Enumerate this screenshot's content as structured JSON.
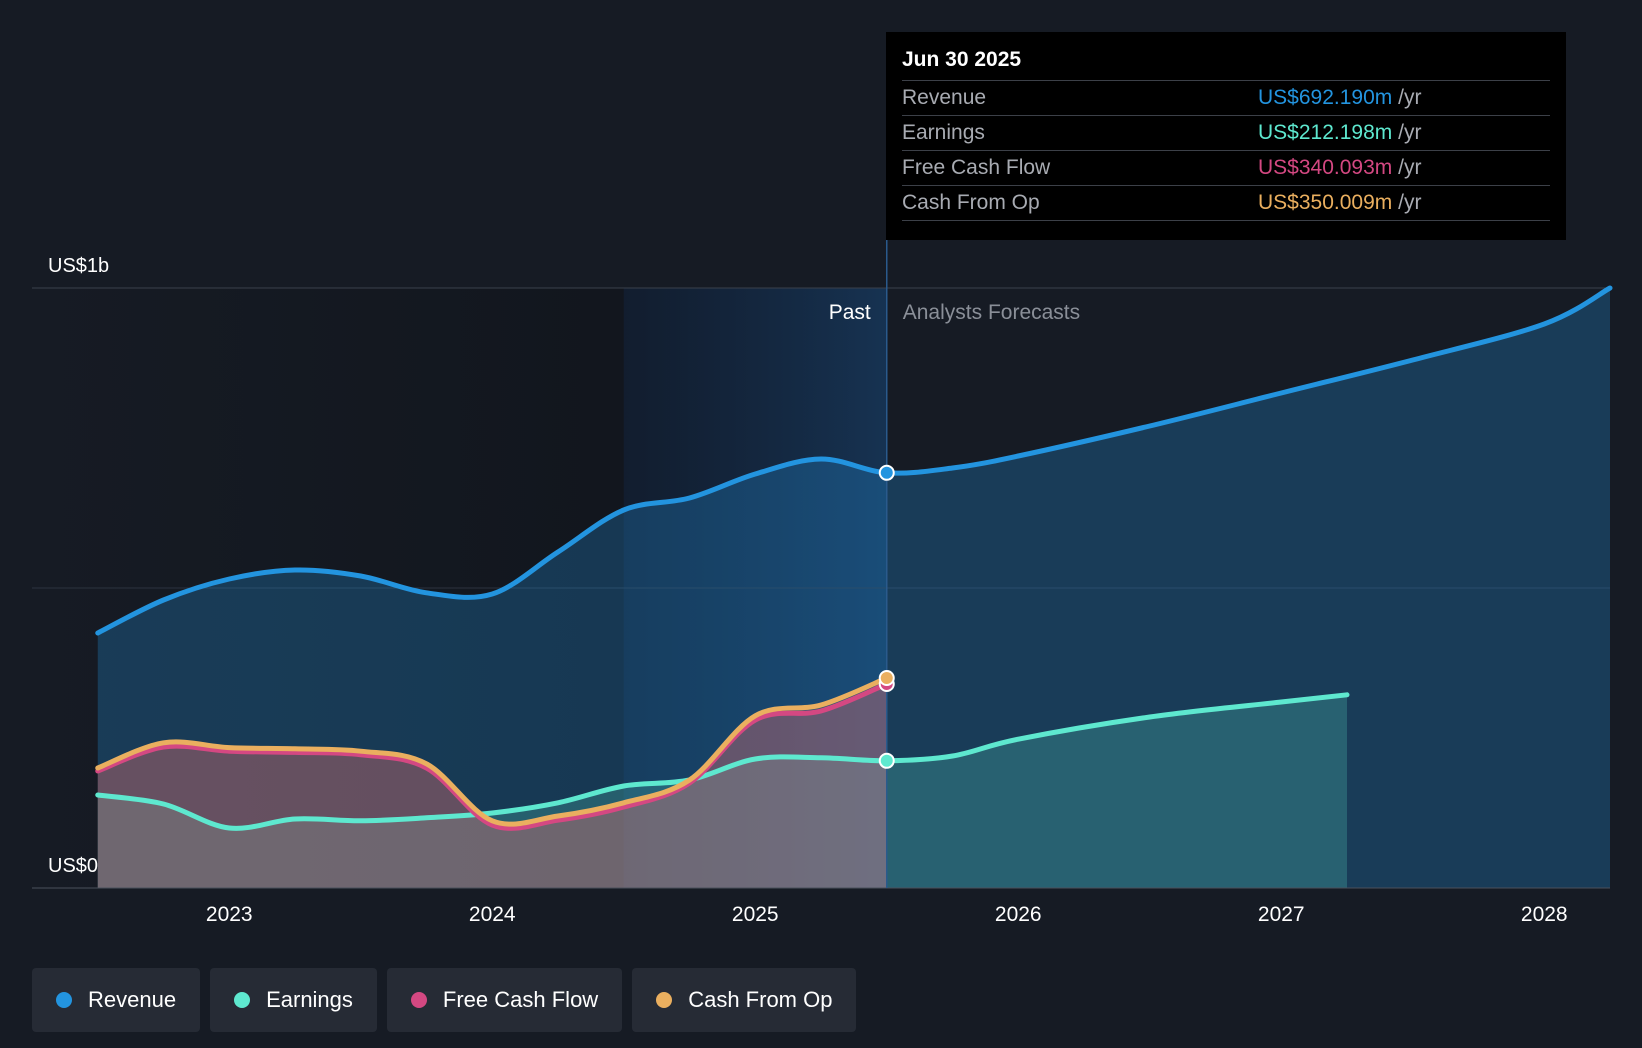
{
  "colors": {
    "revenue": "#2394df",
    "earnings": "#5ee8cf",
    "fcf": "#d44882",
    "cfo": "#eaaf5f"
  },
  "tooltip": {
    "date": "Jun 30 2025",
    "rows": [
      {
        "label": "Revenue",
        "value": "US$692.190m",
        "unit": "/yr"
      },
      {
        "label": "Earnings",
        "value": "US$212.198m",
        "unit": "/yr"
      },
      {
        "label": "Free Cash Flow",
        "value": "US$340.093m",
        "unit": "/yr"
      },
      {
        "label": "Cash From Op",
        "value": "US$350.009m",
        "unit": "/yr"
      }
    ]
  },
  "legend": {
    "items": [
      {
        "label": "Revenue"
      },
      {
        "label": "Earnings"
      },
      {
        "label": "Free Cash Flow"
      },
      {
        "label": "Cash From Op"
      }
    ]
  },
  "chart_data": {
    "type": "area",
    "title": "",
    "xlabel": "",
    "ylabel": "",
    "y_labels": {
      "top": "US$1b",
      "bottom": "US$0"
    },
    "ylim": [
      0,
      1000
    ],
    "xlim": [
      2022.25,
      2028.25
    ],
    "x_ticks": [
      "2023",
      "2024",
      "2025",
      "2026",
      "2027",
      "2028"
    ],
    "x_tick_values": [
      2023,
      2024,
      2025,
      2026,
      2027,
      2028
    ],
    "past_label": "Past",
    "forecast_label": "Analysts Forecasts",
    "divider_x": 2025.5,
    "highlight_start_x": 2024.5,
    "series": [
      {
        "name": "Revenue",
        "key": "revenue",
        "x": [
          2022.5,
          2022.75,
          2023.0,
          2023.25,
          2023.5,
          2023.75,
          2024.0,
          2024.25,
          2024.5,
          2024.75,
          2025.0,
          2025.25,
          2025.5,
          2025.75,
          2026.0,
          2026.5,
          2027.0,
          2027.5,
          2028.0,
          2028.25
        ],
        "values": [
          425,
          480,
          515,
          530,
          520,
          492,
          490,
          560,
          630,
          650,
          690,
          715,
          692,
          700,
          720,
          770,
          825,
          880,
          940,
          1000
        ]
      },
      {
        "name": "Earnings",
        "key": "earnings",
        "x": [
          2022.5,
          2022.75,
          2023.0,
          2023.25,
          2023.5,
          2023.75,
          2024.0,
          2024.25,
          2024.5,
          2024.75,
          2025.0,
          2025.25,
          2025.5,
          2025.75,
          2026.0,
          2026.5,
          2027.0,
          2027.25
        ],
        "values": [
          155,
          140,
          100,
          115,
          112,
          117,
          125,
          142,
          170,
          180,
          215,
          217,
          212,
          220,
          248,
          285,
          310,
          322
        ]
      },
      {
        "name": "Free Cash Flow",
        "key": "fcf",
        "x": [
          2022.5,
          2022.75,
          2023.0,
          2023.25,
          2023.5,
          2023.75,
          2024.0,
          2024.25,
          2024.5,
          2024.75,
          2025.0,
          2025.25,
          2025.5
        ],
        "values": [
          195,
          235,
          228,
          226,
          222,
          200,
          105,
          113,
          135,
          175,
          280,
          295,
          340
        ]
      },
      {
        "name": "Cash From Op",
        "key": "cfo",
        "x": [
          2022.5,
          2022.75,
          2023.0,
          2023.25,
          2023.5,
          2023.75,
          2024.0,
          2024.25,
          2024.5,
          2024.75,
          2025.0,
          2025.25,
          2025.5
        ],
        "values": [
          200,
          242,
          234,
          232,
          228,
          207,
          112,
          120,
          142,
          180,
          287,
          305,
          350
        ]
      }
    ]
  }
}
